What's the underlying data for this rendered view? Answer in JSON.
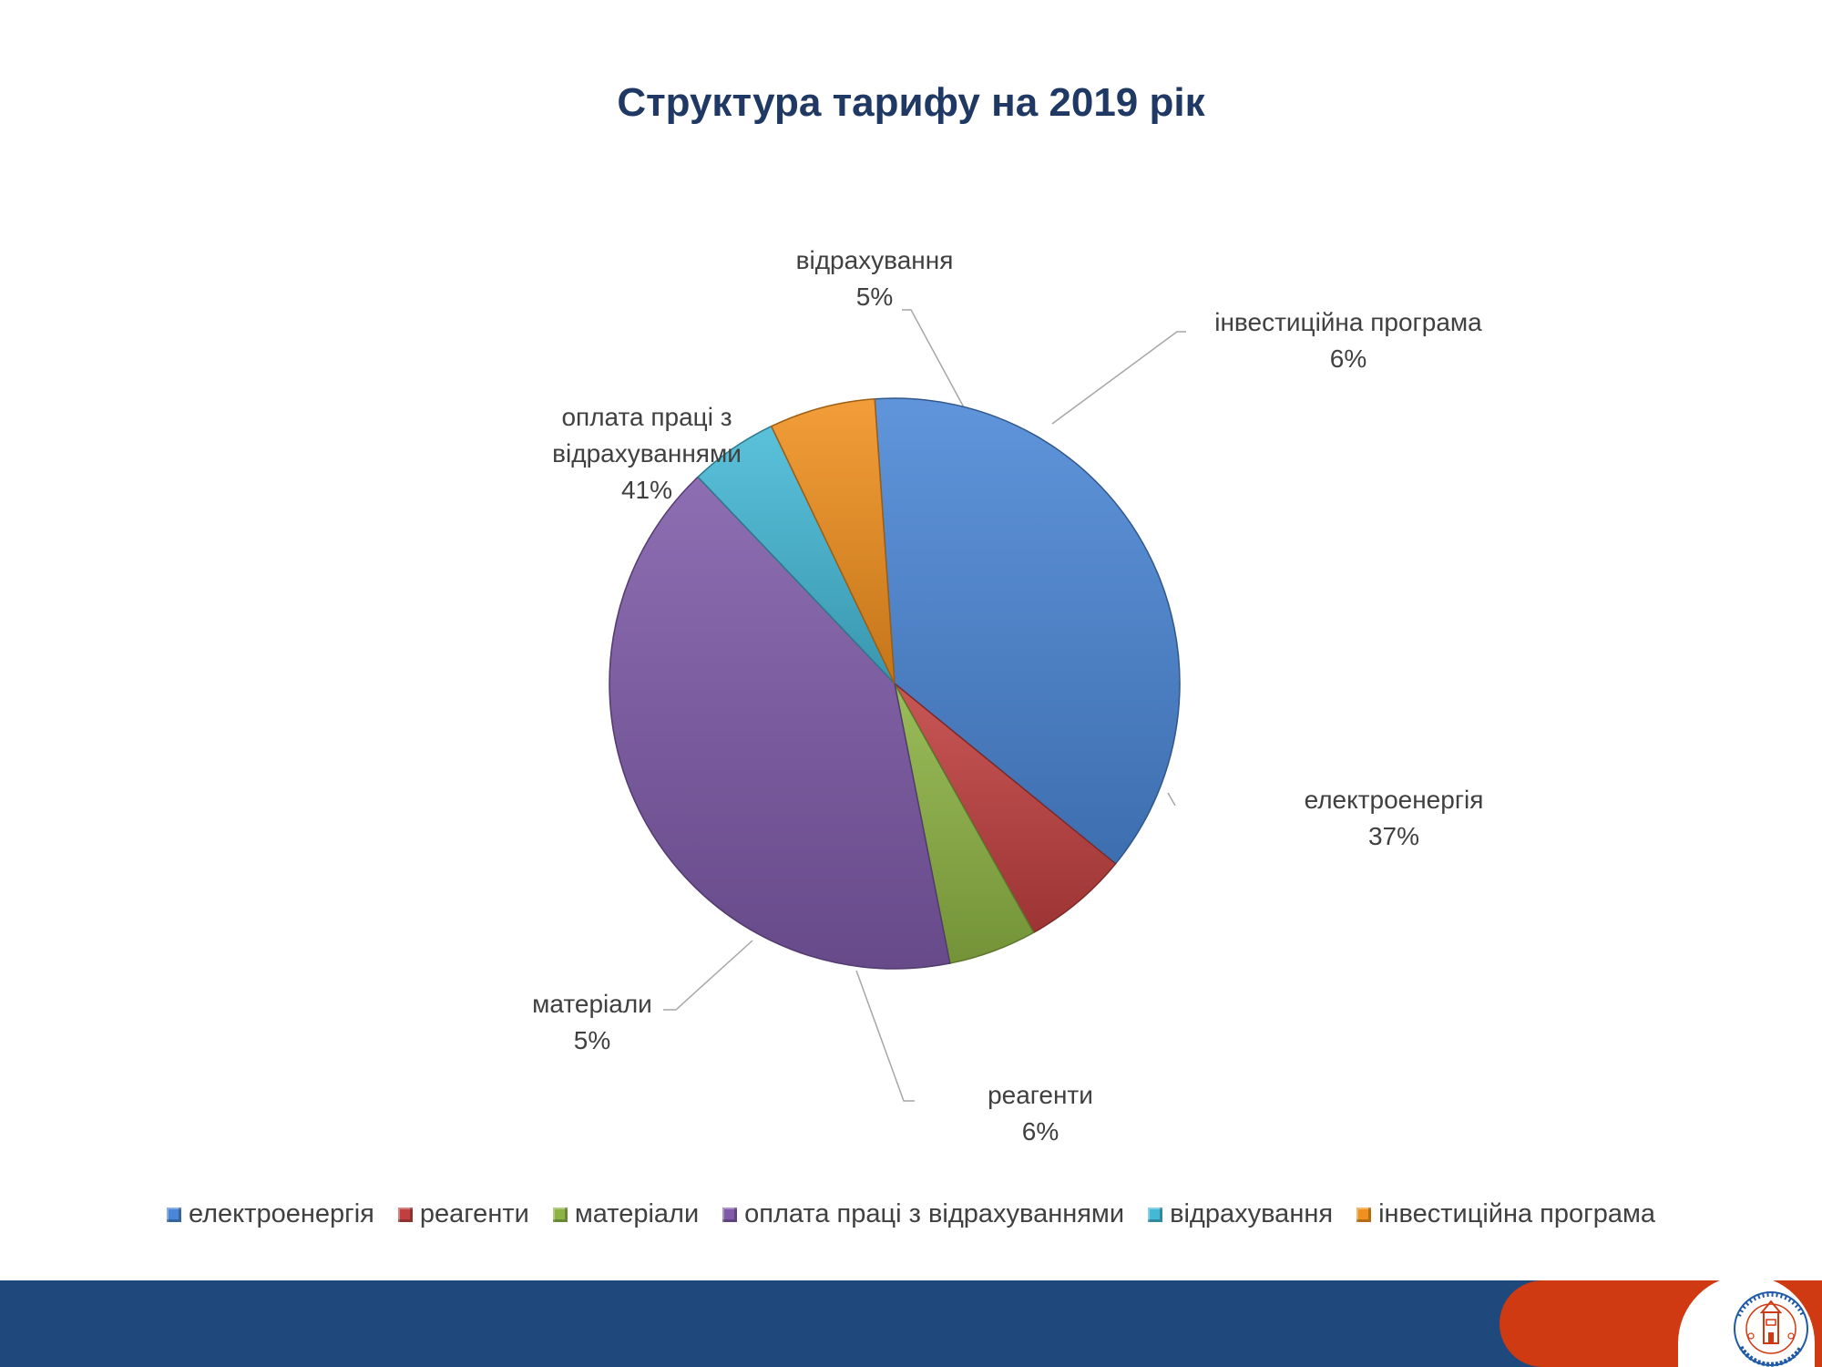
{
  "slide": {
    "logo_text": "КОМУНАЛЬНЕ ПІДПРИЄМСТВО ЖИТОМИРВОДОКАНАЛ",
    "colors": {
      "footer_band": "#1f497d",
      "footer_accent": "#d03a12",
      "title": "#1f3864"
    }
  },
  "chart_data": {
    "type": "pie",
    "title": "Структура тарифу на 2019 рік",
    "legend_position": "bottom",
    "categories": [
      "електроенергія",
      "реагенти",
      "матеріали",
      "оплата праці з відрахуваннями",
      "відрахування",
      "інвестиційна програма"
    ],
    "values": [
      37,
      6,
      5,
      41,
      5,
      6
    ],
    "value_labels": [
      "37%",
      "6%",
      "5%",
      "41%",
      "5%",
      "6%"
    ],
    "data_labels": [
      {
        "lines": [
          "електроенергія"
        ],
        "value": "37%"
      },
      {
        "lines": [
          "реагенти"
        ],
        "value": "6%"
      },
      {
        "lines": [
          "матеріали"
        ],
        "value": "5%"
      },
      {
        "lines": [
          "оплата праці з",
          "відрахуваннями"
        ],
        "value": "41%"
      },
      {
        "lines": [
          "відрахування"
        ],
        "value": "5%"
      },
      {
        "lines": [
          "інвестиційна програма"
        ],
        "value": "6%"
      }
    ],
    "colors": [
      "#4a86d6",
      "#c0403f",
      "#8db344",
      "#7e5aa8",
      "#45b8d6",
      "#f0901e"
    ]
  }
}
